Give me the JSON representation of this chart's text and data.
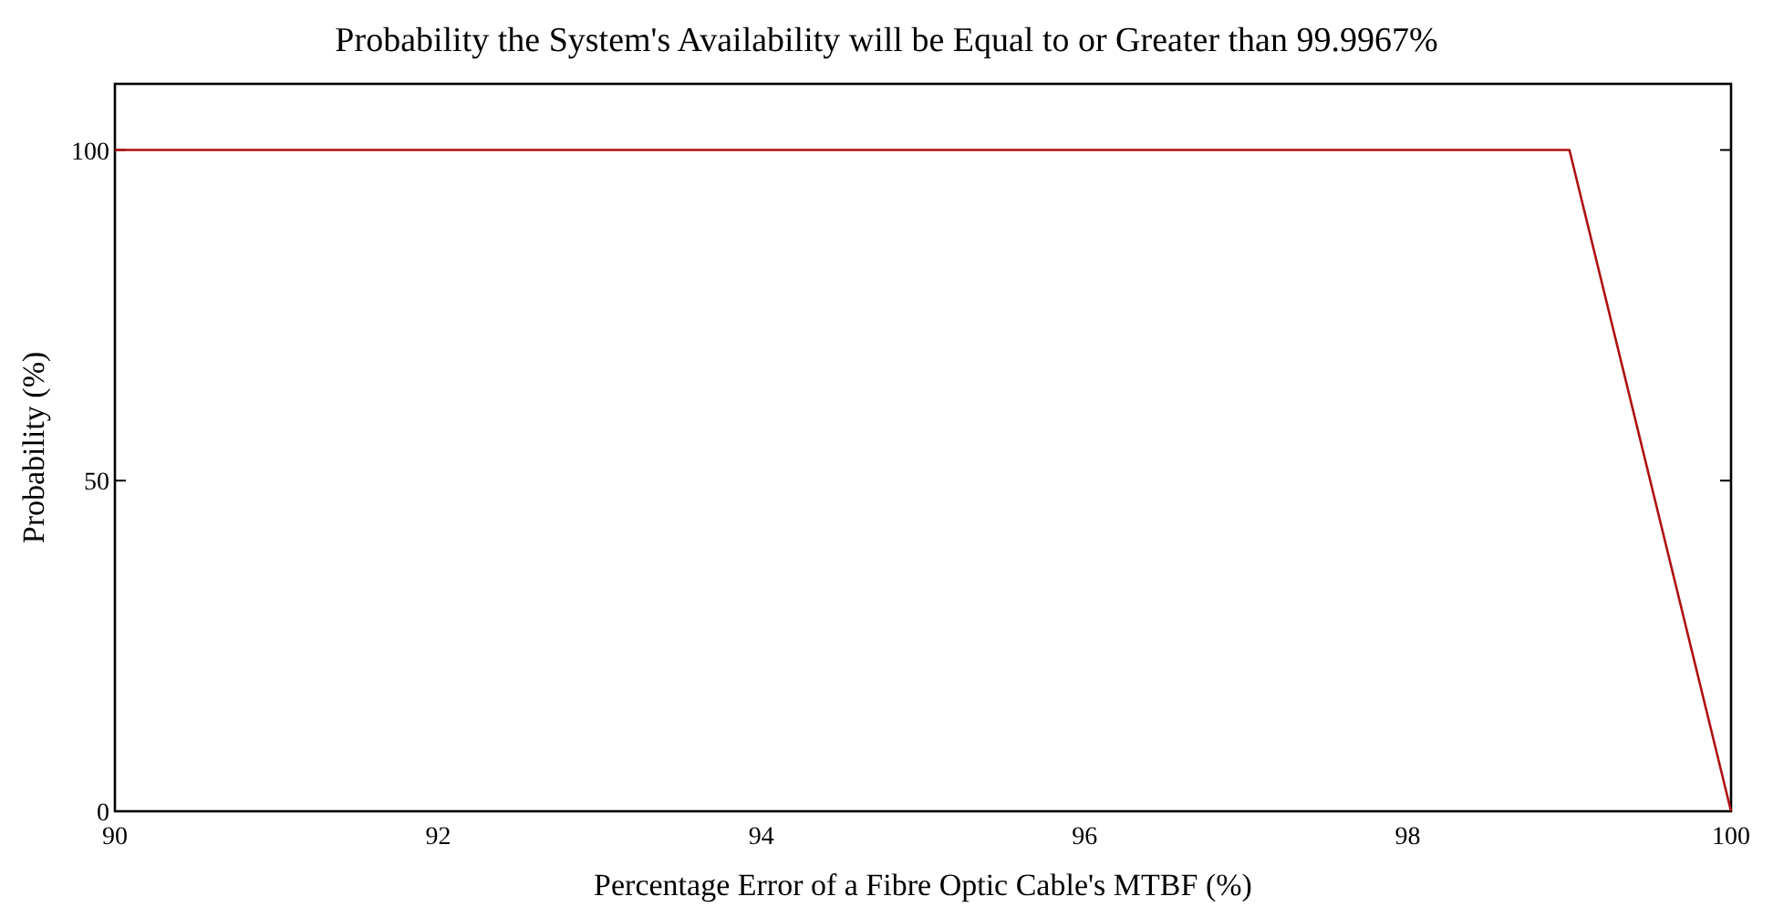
{
  "chart_data": {
    "type": "line",
    "title": "Probability the System's Availability will be Equal to or Greater than 99.9967%",
    "xlabel": "Percentage Error of a Fibre Optic Cable's MTBF (%)",
    "ylabel": "Probability (%)",
    "x": [
      90,
      99,
      100
    ],
    "series": [
      {
        "color": "#b01010",
        "values": [
          100,
          100,
          0
        ]
      }
    ],
    "xlim": [
      90,
      100
    ],
    "xticks": [
      90,
      92,
      94,
      96,
      98,
      100
    ],
    "ylim": [
      0,
      110
    ],
    "yticks": [
      0,
      50,
      100
    ],
    "marker": "none",
    "line_style": "solid"
  }
}
